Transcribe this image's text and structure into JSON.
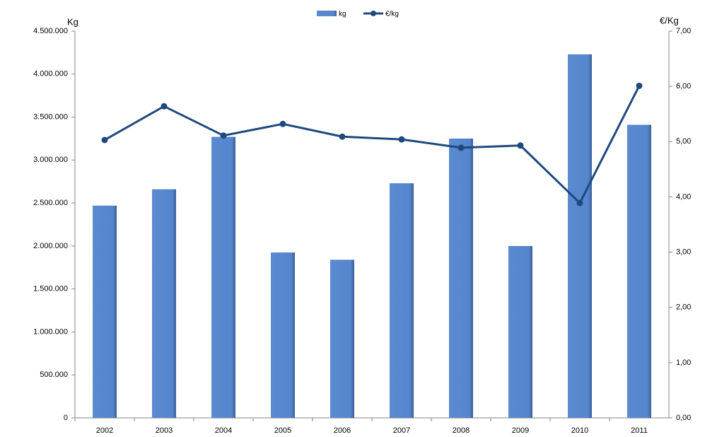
{
  "chart_data": {
    "type": "bar",
    "y_label": "Kg",
    "y2_label": "€/Kg",
    "categories": [
      "2002",
      "2003",
      "2004",
      "2005",
      "2006",
      "2007",
      "2008",
      "2009",
      "2010",
      "2011"
    ],
    "series": [
      {
        "name": "kg",
        "type": "bar",
        "color": "#5a8ad0",
        "values": [
          2470000,
          2660000,
          3270000,
          1925000,
          1840000,
          2730000,
          3250000,
          2000000,
          4230000,
          3410000
        ]
      },
      {
        "name": "€/kg",
        "type": "line",
        "axis": "y2",
        "color": "#1f497d",
        "values": [
          5.03,
          5.64,
          5.11,
          5.32,
          5.09,
          5.04,
          4.89,
          4.93,
          3.89,
          6.01
        ]
      }
    ],
    "ylim": [
      0,
      4500000
    ],
    "yticks": [
      0,
      {
        "value": 500000,
        "label": "500.000"
      },
      {
        "value": 1000000,
        "label": "1.000.000"
      },
      {
        "value": 1500000,
        "label": "1.500.000"
      },
      {
        "value": 2000000,
        "label": "2.000.000"
      },
      {
        "value": 2500000,
        "label": "2.500.000"
      },
      {
        "value": 3000000,
        "label": "3.000.000"
      },
      {
        "value": 3500000,
        "label": "3.500.000"
      },
      {
        "value": 4000000,
        "label": "4.000.000"
      },
      {
        "value": 4500000,
        "label": "4.500.000"
      }
    ],
    "y2lim": [
      0,
      7
    ],
    "y2ticks": [
      {
        "value": 0,
        "label": "0,00"
      },
      {
        "value": 1,
        "label": "1,00"
      },
      {
        "value": 2,
        "label": "2,00"
      },
      {
        "value": 3,
        "label": "3,00"
      },
      {
        "value": 4,
        "label": "4,00"
      },
      {
        "value": 5,
        "label": "5,00"
      },
      {
        "value": 6,
        "label": "6,00"
      },
      {
        "value": 7,
        "label": "7,00"
      }
    ],
    "legend": "top",
    "grid": false
  }
}
